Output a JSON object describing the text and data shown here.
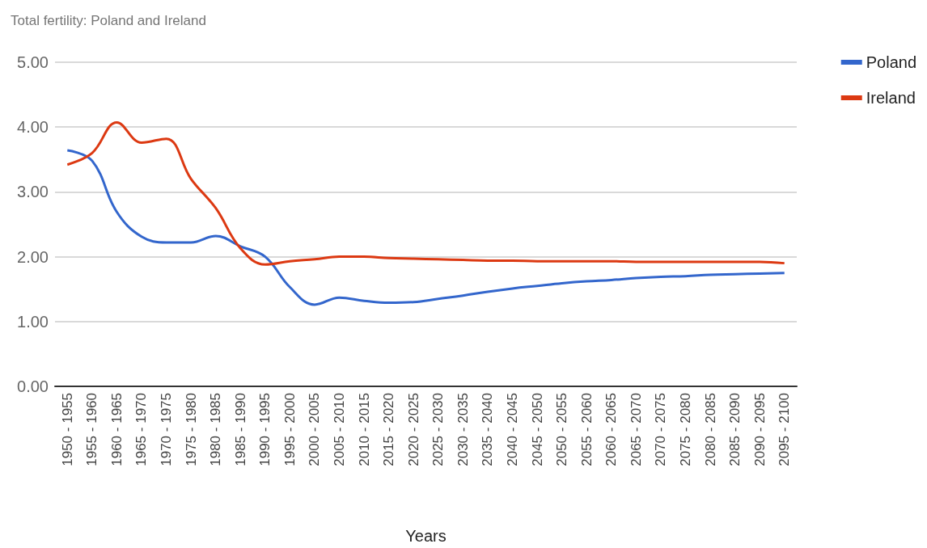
{
  "chart_data": {
    "type": "line",
    "title": "Total fertility: Poland and Ireland",
    "xlabel": "Years",
    "categories": [
      "1950 - 1955",
      "1955 - 1960",
      "1960 - 1965",
      "1965 - 1970",
      "1970 - 1975",
      "1975 - 1980",
      "1980 - 1985",
      "1985 - 1990",
      "1990 - 1995",
      "1995 - 2000",
      "2000 - 2005",
      "2005 - 2010",
      "2010 - 2015",
      "2015 - 2020",
      "2020 - 2025",
      "2025 - 2030",
      "2030 - 2035",
      "2035 - 2040",
      "2040 - 2045",
      "2045 - 2050",
      "2050 - 2055",
      "2055 - 2060",
      "2060 - 2065",
      "2065 - 2070",
      "2070 - 2075",
      "2075 - 2080",
      "2080 - 2085",
      "2085 - 2090",
      "2090 - 2095",
      "2095 - 2100"
    ],
    "series": [
      {
        "name": "Poland",
        "color": "#3366cc",
        "values": [
          3.64,
          3.48,
          2.69,
          2.31,
          2.22,
          2.22,
          2.32,
          2.16,
          2.0,
          1.53,
          1.26,
          1.37,
          1.32,
          1.29,
          1.3,
          1.35,
          1.4,
          1.46,
          1.51,
          1.55,
          1.59,
          1.62,
          1.64,
          1.67,
          1.69,
          1.7,
          1.72,
          1.73,
          1.74,
          1.75
        ]
      },
      {
        "name": "Ireland",
        "color": "#dc3912",
        "values": [
          3.42,
          3.6,
          4.07,
          3.76,
          3.82,
          3.2,
          2.75,
          2.13,
          1.88,
          1.93,
          1.96,
          2.0,
          2.0,
          1.98,
          1.97,
          1.96,
          1.95,
          1.94,
          1.94,
          1.93,
          1.93,
          1.93,
          1.93,
          1.92,
          1.92,
          1.92,
          1.92,
          1.92,
          1.92,
          1.9
        ]
      }
    ],
    "ylim": [
      0,
      5
    ],
    "yticks": [
      {
        "value": 0,
        "label": "0.00"
      },
      {
        "value": 1,
        "label": "1.00"
      },
      {
        "value": 2,
        "label": "2.00"
      },
      {
        "value": 3,
        "label": "3.00"
      },
      {
        "value": 4,
        "label": "4.00"
      },
      {
        "value": 5,
        "label": "5.00"
      }
    ],
    "grid": "y",
    "legend": "top right",
    "marker": "none",
    "line_style": "solid"
  }
}
